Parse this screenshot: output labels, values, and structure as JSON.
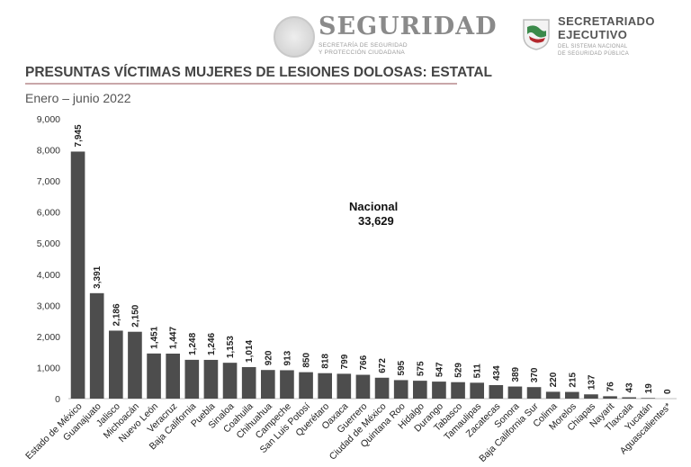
{
  "header": {
    "seguridad": {
      "title": "SEGURIDAD",
      "sub_line1": "SECRETARÍA DE SEGURIDAD",
      "sub_line2": "Y PROTECCIÓN CIUDADANA"
    },
    "sesnsp": {
      "title_line1": "SECRETARIADO",
      "title_line2": "EJECUTIVO",
      "sub_line1": "DEL SISTEMA NACIONAL",
      "sub_line2": "DE SEGURIDAD PÚBLICA"
    }
  },
  "colors": {
    "bar": "#4d4d4d",
    "accent_rule": "#c9a7a9"
  },
  "chart_data": {
    "type": "bar",
    "title": "PRESUNTAS VÍCTIMAS MUJERES DE LESIONES DOLOSAS: ESTATAL",
    "subtitle": "Enero – junio 2022",
    "annotation_label": "Nacional",
    "annotation_value": "33,629",
    "ylim": [
      0,
      9000
    ],
    "yticks": [
      0,
      1000,
      2000,
      3000,
      4000,
      5000,
      6000,
      7000,
      8000,
      9000
    ],
    "ytick_labels": [
      "0",
      "1,000",
      "2,000",
      "3,000",
      "4,000",
      "5,000",
      "6,000",
      "7,000",
      "8,000",
      "9,000"
    ],
    "categories": [
      "Estado de México",
      "Guanajuato",
      "Jalisco",
      "Michoacán",
      "Nuevo León",
      "Veracruz",
      "Baja California",
      "Puebla",
      "Sinaloa",
      "Coahuila",
      "Chihuahua",
      "Campeche",
      "San Luis Potosí",
      "Querétaro",
      "Oaxaca",
      "Guerrero",
      "Ciudad de México",
      "Quintana Roo",
      "Hidalgo",
      "Durango",
      "Tabasco",
      "Tamaulipas",
      "Zacatecas",
      "Sonora",
      "Baja California Sur",
      "Colima",
      "Morelos",
      "Chiapas",
      "Nayarit",
      "Tlaxcala",
      "Yucatán",
      "Aguascalientes*"
    ],
    "values": [
      7945,
      3391,
      2186,
      2150,
      1451,
      1447,
      1248,
      1246,
      1153,
      1014,
      920,
      913,
      850,
      818,
      799,
      766,
      672,
      595,
      575,
      547,
      529,
      511,
      434,
      389,
      370,
      220,
      215,
      137,
      76,
      43,
      19,
      0
    ],
    "value_labels": [
      "7,945",
      "3,391",
      "2,186",
      "2,150",
      "1,451",
      "1,447",
      "1,248",
      "1,246",
      "1,153",
      "1,014",
      "920",
      "913",
      "850",
      "818",
      "799",
      "766",
      "672",
      "595",
      "575",
      "547",
      "529",
      "511",
      "434",
      "389",
      "370",
      "220",
      "215",
      "137",
      "76",
      "43",
      "19",
      "0"
    ],
    "grid": false,
    "legend": "none"
  }
}
